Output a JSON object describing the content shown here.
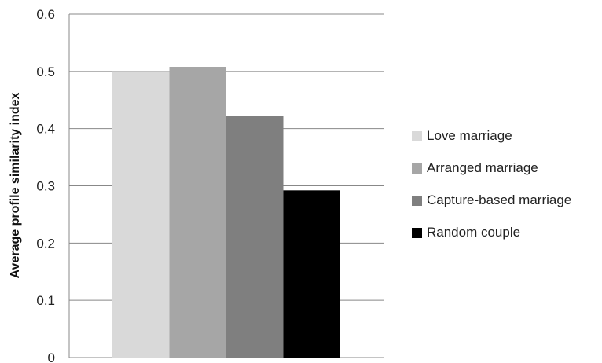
{
  "chart_data": {
    "type": "bar",
    "title": "",
    "xlabel": "",
    "ylabel": "Average profile similarity index",
    "ylim": [
      0,
      0.6
    ],
    "yticks": [
      "0",
      "0.1",
      "0.2",
      "0.3",
      "0.4",
      "0.5",
      "0.6"
    ],
    "grid": true,
    "legend_position": "right",
    "series": [
      {
        "name": "Love marriage",
        "value": 0.5,
        "color": "#d9d9d9"
      },
      {
        "name": "Arranged marriage",
        "value": 0.508,
        "color": "#a6a6a6"
      },
      {
        "name": "Capture-based marriage",
        "value": 0.422,
        "color": "#7f7f7f"
      },
      {
        "name": "Random couple",
        "value": 0.292,
        "color": "#000000"
      }
    ]
  }
}
